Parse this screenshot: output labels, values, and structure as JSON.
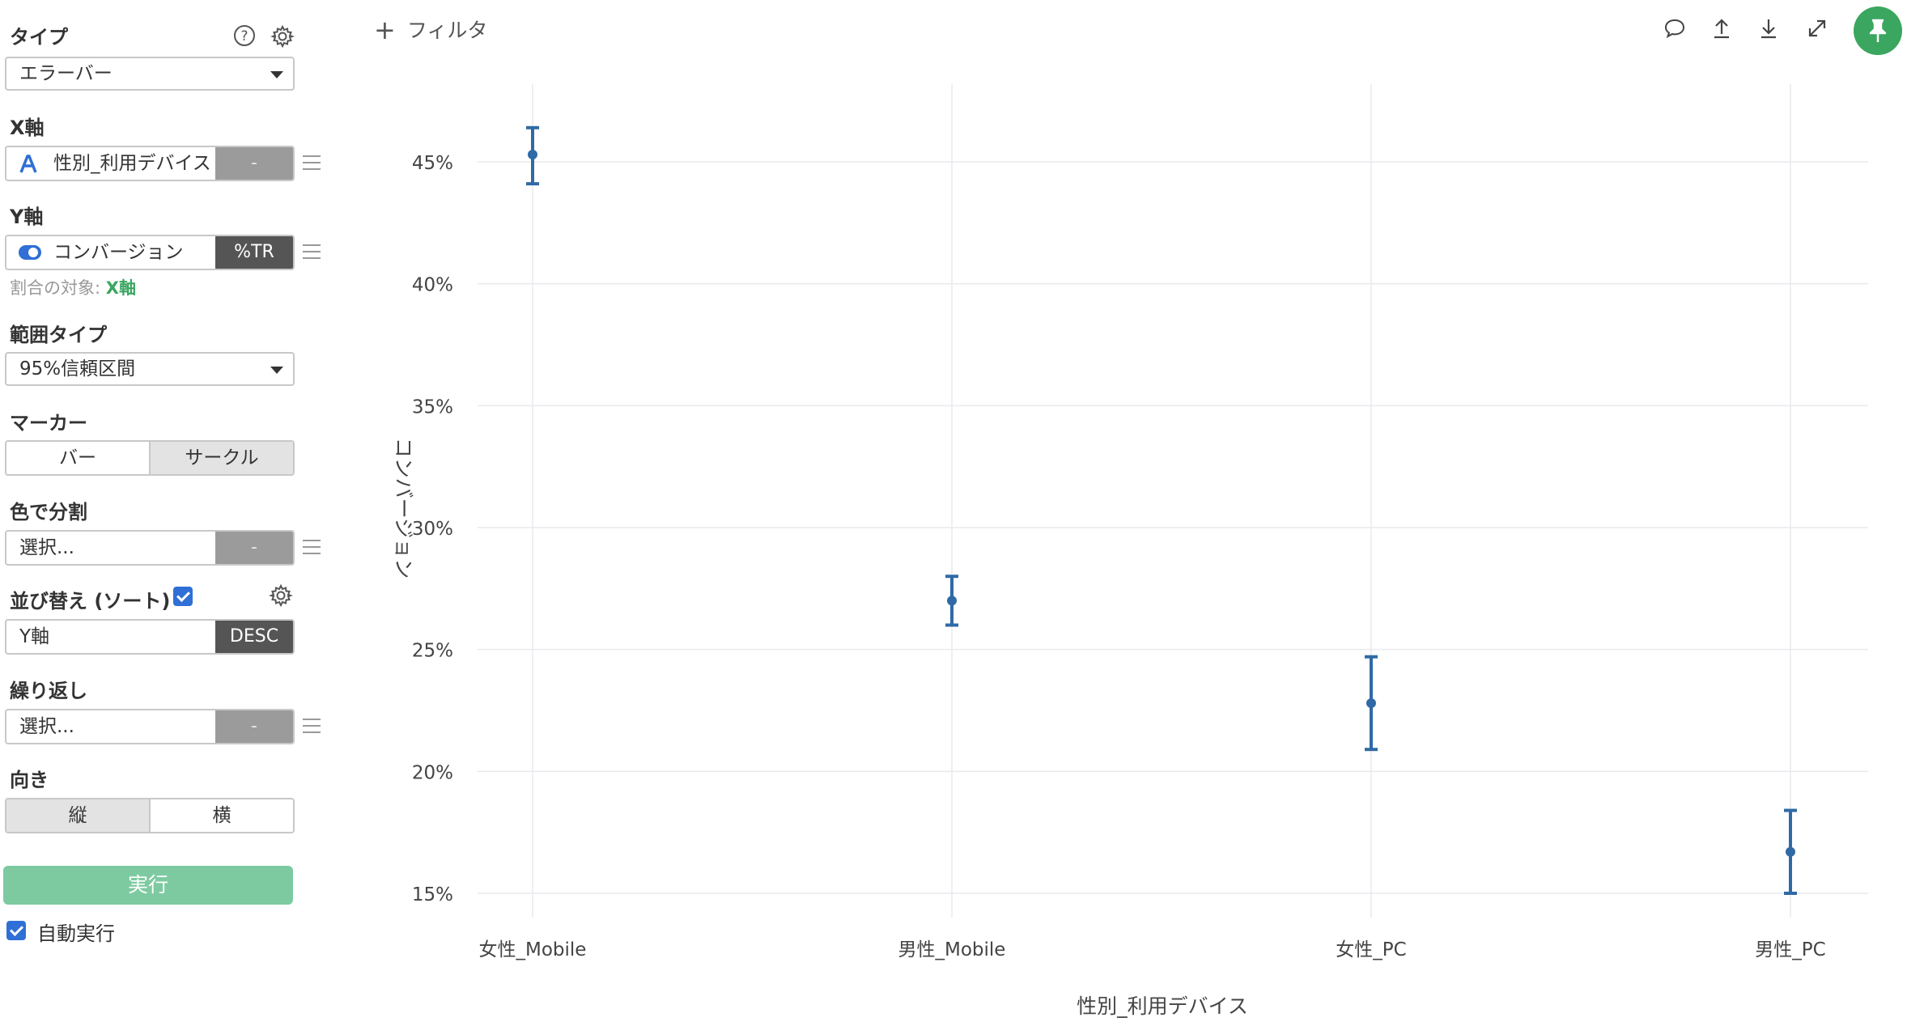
{
  "sidebar": {
    "type": {
      "label": "タイプ",
      "value": "エラーバー"
    },
    "x_axis": {
      "label": "X軸",
      "field": "性別_利用デバイス",
      "button": "-"
    },
    "y_axis": {
      "label": "Y軸",
      "field": "コンバージョン",
      "button": "%TR",
      "hint_prefix": "割合の対象:",
      "hint_value": "X軸"
    },
    "range_type": {
      "label": "範囲タイプ",
      "value": "95%信頼区間"
    },
    "marker": {
      "label": "マーカー",
      "options": [
        "バー",
        "サークル"
      ],
      "selected": "サークル"
    },
    "color_split": {
      "label": "色で分割",
      "placeholder": "選択...",
      "button": "-"
    },
    "sort": {
      "label": "並び替え (ソート)",
      "checked": true,
      "field": "Y軸",
      "button": "DESC"
    },
    "repeat": {
      "label": "繰り返し",
      "placeholder": "選択...",
      "button": "-"
    },
    "orientation": {
      "label": "向き",
      "options": [
        "縦",
        "横"
      ],
      "selected": "縦"
    },
    "run_label": "実行",
    "auto_run": {
      "label": "自動実行",
      "checked": true
    }
  },
  "toolbar": {
    "filter_label": "フィルタ",
    "icons": [
      "comment-icon",
      "upload-icon",
      "download-icon",
      "expand-icon",
      "pin-icon"
    ]
  },
  "colors": {
    "accent": "#3aa65f",
    "series": "#2f6aa6",
    "grid": "#e9eaee"
  },
  "chart_data": {
    "type": "errorbar",
    "xlabel": "性別_利用デバイス",
    "ylabel": "コンバージョン",
    "categories": [
      "女性_Mobile",
      "男性_Mobile",
      "女性_PC",
      "男性_PC"
    ],
    "values": [
      45.3,
      27.0,
      22.8,
      16.7
    ],
    "lower": [
      44.1,
      26.0,
      20.9,
      15.0
    ],
    "upper": [
      46.4,
      28.0,
      24.7,
      18.4
    ],
    "ylim": [
      15,
      47
    ],
    "yticks": [
      15,
      20,
      25,
      30,
      35,
      40,
      45
    ],
    "ytick_labels": [
      "15%",
      "20%",
      "25%",
      "30%",
      "35%",
      "40%",
      "45%"
    ],
    "grid": true
  }
}
